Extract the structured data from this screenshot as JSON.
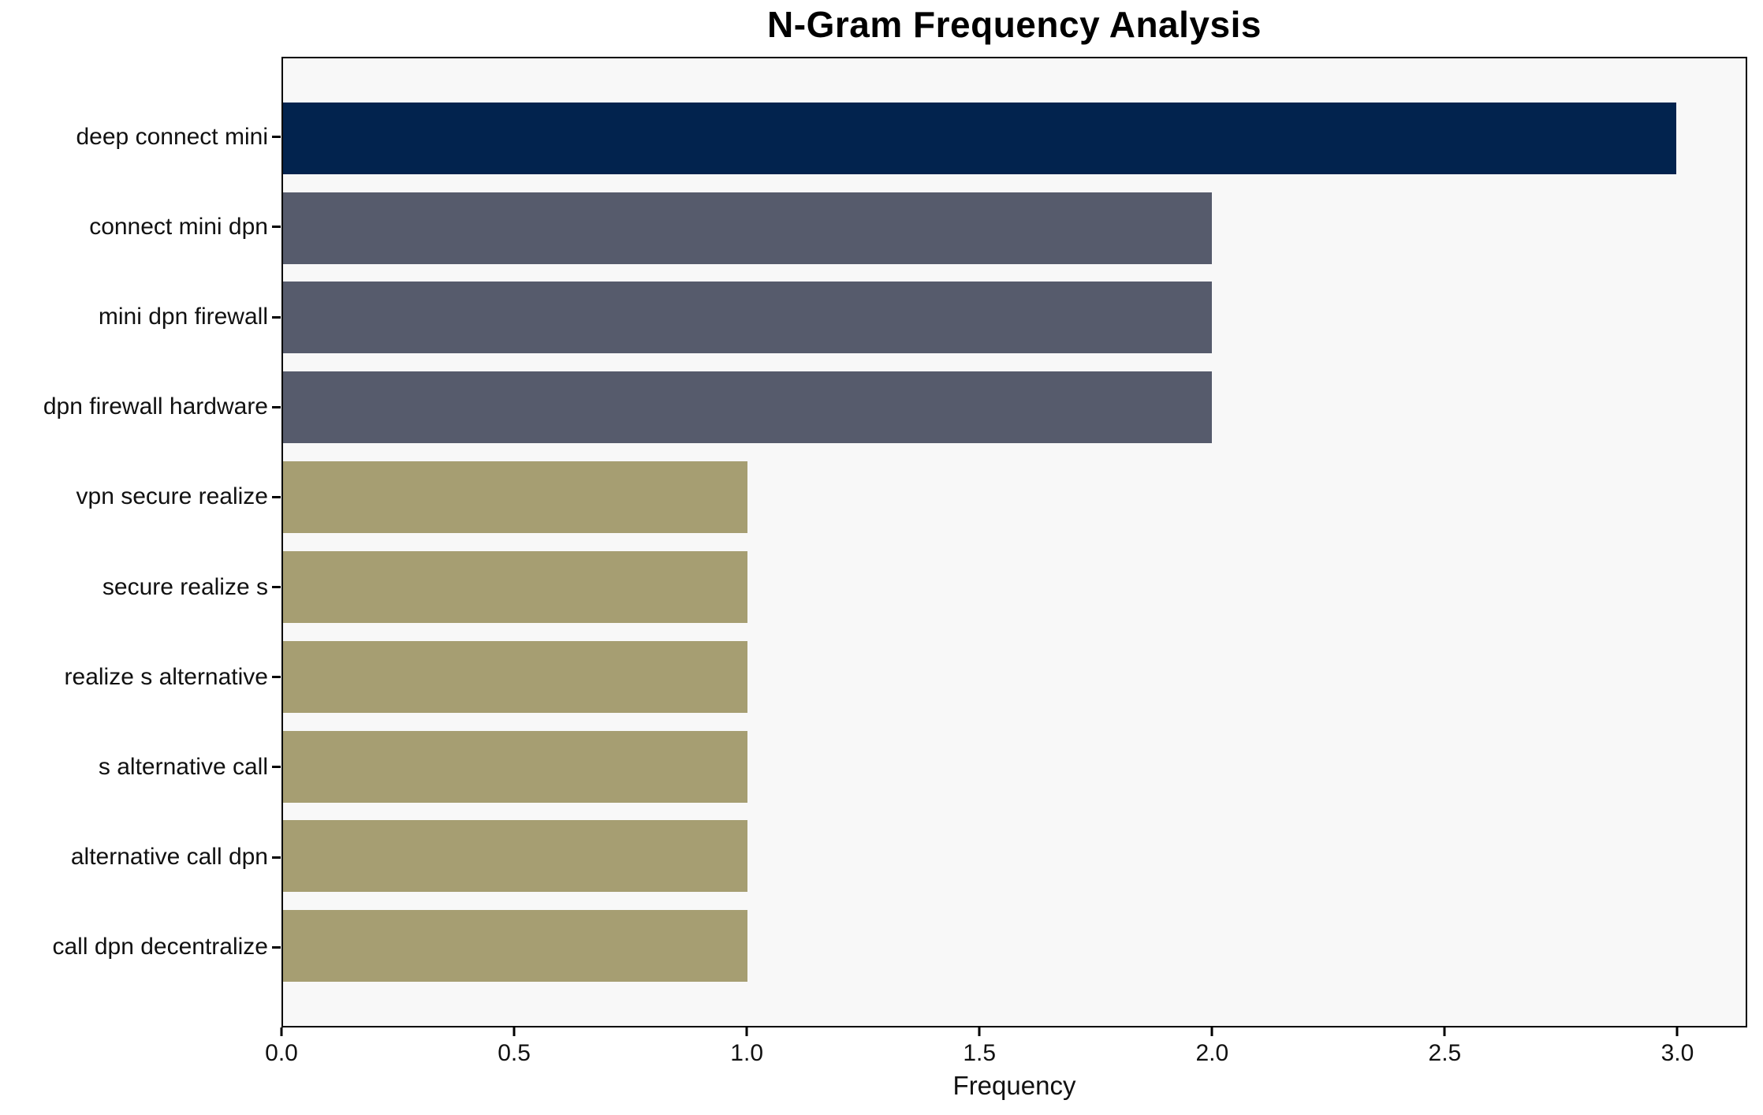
{
  "chart_data": {
    "type": "bar",
    "orientation": "horizontal",
    "title": "N-Gram Frequency Analysis",
    "xlabel": "Frequency",
    "ylabel": "",
    "categories": [
      "deep connect mini",
      "connect mini dpn",
      "mini dpn firewall",
      "dpn firewall hardware",
      "vpn secure realize",
      "secure realize s",
      "realize s alternative",
      "s alternative call",
      "alternative call dpn",
      "call dpn decentralize"
    ],
    "values": [
      3,
      2,
      2,
      2,
      1,
      1,
      1,
      1,
      1,
      1
    ],
    "bar_colors": [
      "#02234e",
      "#565b6c",
      "#565b6c",
      "#565b6c",
      "#a69e72",
      "#a69e72",
      "#a69e72",
      "#a69e72",
      "#a69e72",
      "#a69e72"
    ],
    "xlim": [
      0,
      3.15
    ],
    "xticks": [
      0.0,
      0.5,
      1.0,
      1.5,
      2.0,
      2.5,
      3.0
    ],
    "xtick_labels": [
      "0.0",
      "0.5",
      "1.0",
      "1.5",
      "2.0",
      "2.5",
      "3.0"
    ],
    "grid": false,
    "legend": null,
    "plot_background": "#f8f8f8",
    "figure_background": "#ffffff",
    "axis_color": "#000000"
  }
}
